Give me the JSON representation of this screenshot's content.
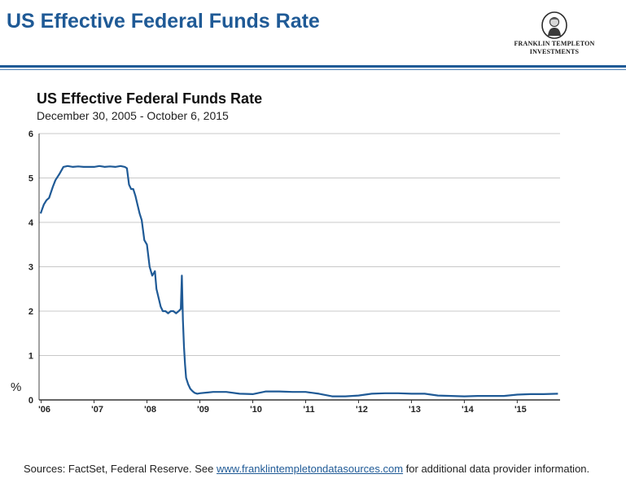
{
  "header": {
    "title": "US Effective Federal Funds Rate",
    "logo_line1": "FRANKLIN TEMPLETON",
    "logo_line2": "INVESTMENTS"
  },
  "colors": {
    "brand_blue": "#1f5a96",
    "series": "#1f5a96",
    "grid": "#c8c8c8"
  },
  "icons": {
    "logo": "franklin-portrait-icon"
  },
  "chart_data": {
    "type": "line",
    "title": "US Effective Federal Funds Rate",
    "subtitle": "December 30, 2005 - October 6, 2015",
    "xlabel": "",
    "ylabel": "%",
    "ylim": [
      0,
      6
    ],
    "xlim": [
      2005.96,
      2015.81
    ],
    "yticks": [
      0,
      1,
      2,
      3,
      4,
      5,
      6
    ],
    "xticks": [
      {
        "label": "'06",
        "value": 2006.0
      },
      {
        "label": "'07",
        "value": 2007.0
      },
      {
        "label": "'08",
        "value": 2008.0
      },
      {
        "label": "'09",
        "value": 2009.0
      },
      {
        "label": "'10",
        "value": 2010.0
      },
      {
        "label": "'11",
        "value": 2011.0
      },
      {
        "label": "'12",
        "value": 2012.0
      },
      {
        "label": "'13",
        "value": 2013.0
      },
      {
        "label": "'14",
        "value": 2014.0
      },
      {
        "label": "'15",
        "value": 2015.0
      }
    ],
    "grid": true,
    "legend": "none",
    "series": [
      {
        "x": [
          2005.99,
          2006.05,
          2006.1,
          2006.15,
          2006.22,
          2006.27,
          2006.35,
          2006.42,
          2006.5,
          2006.6,
          2006.7,
          2006.8,
          2006.9,
          2007.0,
          2007.1,
          2007.2,
          2007.3,
          2007.4,
          2007.5,
          2007.58,
          2007.62,
          2007.66,
          2007.7,
          2007.74,
          2007.78,
          2007.82,
          2007.86,
          2007.9,
          2007.95,
          2008.0,
          2008.05,
          2008.1,
          2008.15,
          2008.18,
          2008.22,
          2008.26,
          2008.3,
          2008.35,
          2008.4,
          2008.45,
          2008.5,
          2008.55,
          2008.6,
          2008.64,
          2008.66,
          2008.68,
          2008.7,
          2008.72,
          2008.74,
          2008.78,
          2008.82,
          2008.86,
          2008.9,
          2008.95,
          2009.0,
          2009.25,
          2009.5,
          2009.75,
          2010.0,
          2010.25,
          2010.5,
          2010.75,
          2011.0,
          2011.25,
          2011.5,
          2011.75,
          2012.0,
          2012.25,
          2012.5,
          2012.75,
          2013.0,
          2013.25,
          2013.5,
          2013.75,
          2014.0,
          2014.25,
          2014.5,
          2014.75,
          2015.0,
          2015.25,
          2015.5,
          2015.77
        ],
        "y": [
          4.2,
          4.4,
          4.5,
          4.55,
          4.8,
          4.95,
          5.1,
          5.25,
          5.27,
          5.25,
          5.26,
          5.25,
          5.25,
          5.25,
          5.27,
          5.25,
          5.26,
          5.25,
          5.27,
          5.25,
          5.22,
          4.85,
          4.75,
          4.75,
          4.6,
          4.4,
          4.2,
          4.05,
          3.6,
          3.5,
          3.0,
          2.8,
          2.9,
          2.5,
          2.3,
          2.1,
          2.0,
          2.0,
          1.95,
          2.0,
          2.0,
          1.95,
          2.0,
          2.05,
          2.8,
          1.8,
          1.2,
          0.8,
          0.5,
          0.35,
          0.25,
          0.2,
          0.16,
          0.14,
          0.15,
          0.18,
          0.18,
          0.14,
          0.13,
          0.19,
          0.19,
          0.18,
          0.18,
          0.14,
          0.08,
          0.08,
          0.1,
          0.14,
          0.15,
          0.15,
          0.14,
          0.14,
          0.1,
          0.09,
          0.08,
          0.09,
          0.09,
          0.09,
          0.12,
          0.13,
          0.13,
          0.14
        ]
      }
    ]
  },
  "footer": {
    "prefix": "Sources: FactSet, Federal Reserve. See ",
    "link": "www.franklintempletondatasources.com",
    "suffix": " for additional data provider information."
  }
}
